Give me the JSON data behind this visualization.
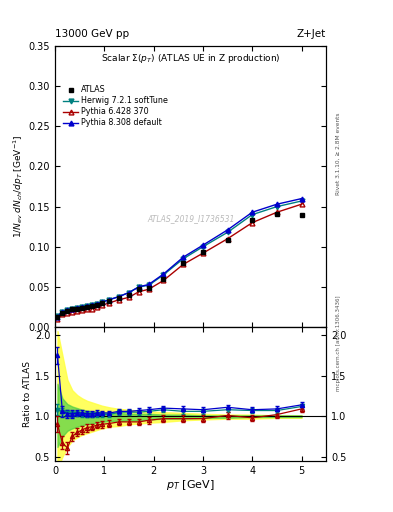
{
  "title_top": "13000 GeV pp",
  "title_right": "Z+Jet",
  "plot_title": "Scalar $\\Sigma(p_T)$ (ATLAS UE in Z production)",
  "ylabel_main": "$1/N_{ev}\\; dN_{ch}/dp_T\\; [\\mathrm{GeV}^{-1}]$",
  "ylabel_ratio": "Ratio to ATLAS",
  "xlabel": "$p_T$ [GeV]",
  "right_label_top": "Rivet 3.1.10, ≥ 2.8M events",
  "right_label_bot": "mcplots.cern.ch [arXiv:1306.3436]",
  "watermark": "ATLAS_2019_I1736531",
  "atlas_x": [
    0.05,
    0.15,
    0.25,
    0.35,
    0.45,
    0.55,
    0.65,
    0.75,
    0.85,
    0.95,
    1.1,
    1.3,
    1.5,
    1.7,
    1.9,
    2.2,
    2.6,
    3.0,
    3.5,
    4.0,
    4.5,
    5.0
  ],
  "atlas_y": [
    0.013,
    0.018,
    0.02,
    0.022,
    0.023,
    0.024,
    0.025,
    0.026,
    0.028,
    0.03,
    0.033,
    0.036,
    0.04,
    0.047,
    0.049,
    0.06,
    0.08,
    0.094,
    0.108,
    0.133,
    0.141,
    0.14
  ],
  "herwig_x": [
    0.05,
    0.15,
    0.25,
    0.35,
    0.45,
    0.55,
    0.65,
    0.75,
    0.85,
    0.95,
    1.1,
    1.3,
    1.5,
    1.7,
    1.9,
    2.2,
    2.6,
    3.0,
    3.5,
    4.0,
    4.5,
    5.0
  ],
  "herwig_y": [
    0.014,
    0.019,
    0.021,
    0.023,
    0.024,
    0.025,
    0.026,
    0.027,
    0.029,
    0.031,
    0.034,
    0.038,
    0.043,
    0.05,
    0.052,
    0.065,
    0.085,
    0.1,
    0.118,
    0.14,
    0.15,
    0.157
  ],
  "pythia6_x": [
    0.05,
    0.15,
    0.25,
    0.35,
    0.45,
    0.55,
    0.65,
    0.75,
    0.85,
    0.95,
    1.1,
    1.3,
    1.5,
    1.7,
    1.9,
    2.2,
    2.6,
    3.0,
    3.5,
    4.0,
    4.5,
    5.0
  ],
  "pythia6_y": [
    0.01,
    0.016,
    0.018,
    0.019,
    0.02,
    0.021,
    0.022,
    0.023,
    0.025,
    0.027,
    0.03,
    0.034,
    0.037,
    0.044,
    0.047,
    0.058,
    0.078,
    0.092,
    0.11,
    0.13,
    0.143,
    0.153
  ],
  "pythia8_x": [
    0.05,
    0.15,
    0.25,
    0.35,
    0.45,
    0.55,
    0.65,
    0.75,
    0.85,
    0.95,
    1.1,
    1.3,
    1.5,
    1.7,
    1.9,
    2.2,
    2.6,
    3.0,
    3.5,
    4.0,
    4.5,
    5.0
  ],
  "pythia8_y": [
    0.013,
    0.019,
    0.021,
    0.023,
    0.024,
    0.025,
    0.026,
    0.027,
    0.029,
    0.031,
    0.034,
    0.038,
    0.043,
    0.05,
    0.053,
    0.066,
    0.087,
    0.102,
    0.121,
    0.143,
    0.153,
    0.16
  ],
  "herwig_ratio": [
    1.08,
    1.05,
    1.04,
    1.03,
    1.03,
    1.02,
    1.02,
    1.02,
    1.02,
    1.02,
    1.02,
    1.05,
    1.05,
    1.05,
    1.06,
    1.08,
    1.06,
    1.06,
    1.08,
    1.07,
    1.07,
    1.12
  ],
  "pythia6_ratio": [
    0.9,
    0.67,
    0.61,
    0.75,
    0.8,
    0.83,
    0.86,
    0.87,
    0.89,
    0.9,
    0.91,
    0.93,
    0.93,
    0.93,
    0.95,
    0.97,
    0.97,
    0.97,
    1.01,
    0.98,
    1.02,
    1.09
  ],
  "pythia8_ratio": [
    1.75,
    1.06,
    1.03,
    1.03,
    1.04,
    1.04,
    1.03,
    1.03,
    1.04,
    1.04,
    1.04,
    1.06,
    1.06,
    1.07,
    1.08,
    1.1,
    1.09,
    1.08,
    1.11,
    1.08,
    1.09,
    1.14
  ],
  "herwig_ratio_err": [
    0.07,
    0.05,
    0.04,
    0.04,
    0.03,
    0.03,
    0.03,
    0.03,
    0.03,
    0.03,
    0.03,
    0.03,
    0.03,
    0.03,
    0.03,
    0.03,
    0.03,
    0.03,
    0.03,
    0.03,
    0.03,
    0.03
  ],
  "pythia6_ratio_err": [
    0.1,
    0.08,
    0.07,
    0.06,
    0.05,
    0.05,
    0.05,
    0.04,
    0.04,
    0.04,
    0.04,
    0.04,
    0.04,
    0.04,
    0.04,
    0.04,
    0.04,
    0.04,
    0.04,
    0.04,
    0.04,
    0.04
  ],
  "pythia8_ratio_err": [
    0.1,
    0.07,
    0.05,
    0.05,
    0.04,
    0.04,
    0.04,
    0.04,
    0.04,
    0.03,
    0.03,
    0.03,
    0.03,
    0.03,
    0.03,
    0.03,
    0.03,
    0.03,
    0.03,
    0.03,
    0.03,
    0.03
  ],
  "yellow_upper": [
    2.05,
    1.75,
    1.45,
    1.32,
    1.26,
    1.22,
    1.19,
    1.17,
    1.15,
    1.13,
    1.11,
    1.09,
    1.08,
    1.07,
    1.06,
    1.05,
    1.04,
    1.03,
    1.02,
    1.02,
    1.01,
    1.01
  ],
  "yellow_lower": [
    0.35,
    0.5,
    0.62,
    0.7,
    0.74,
    0.77,
    0.79,
    0.81,
    0.83,
    0.85,
    0.87,
    0.88,
    0.9,
    0.91,
    0.92,
    0.93,
    0.95,
    0.96,
    0.97,
    0.97,
    0.98,
    0.98
  ],
  "green_upper": [
    1.4,
    1.22,
    1.15,
    1.12,
    1.1,
    1.08,
    1.07,
    1.06,
    1.06,
    1.05,
    1.04,
    1.04,
    1.03,
    1.03,
    1.03,
    1.02,
    1.02,
    1.01,
    1.01,
    1.01,
    1.01,
    1.01
  ],
  "green_lower": [
    0.62,
    0.75,
    0.82,
    0.85,
    0.87,
    0.89,
    0.9,
    0.91,
    0.92,
    0.93,
    0.94,
    0.94,
    0.95,
    0.95,
    0.96,
    0.97,
    0.97,
    0.98,
    0.98,
    0.99,
    0.99,
    0.99
  ],
  "herwig_color": "#008080",
  "pythia6_color": "#aa0000",
  "pythia8_color": "#0000cc",
  "atlas_color": "#000000",
  "band_yellow": "#ffff44",
  "band_green": "#44cc44",
  "ylim_main": [
    0.0,
    0.35
  ],
  "ylim_ratio": [
    0.45,
    2.1
  ],
  "xlim": [
    0.0,
    5.5
  ],
  "main_yticks": [
    0.0,
    0.05,
    0.1,
    0.15,
    0.2,
    0.25,
    0.3,
    0.35
  ],
  "ratio_yticks": [
    0.5,
    1.0,
    1.5,
    2.0
  ]
}
